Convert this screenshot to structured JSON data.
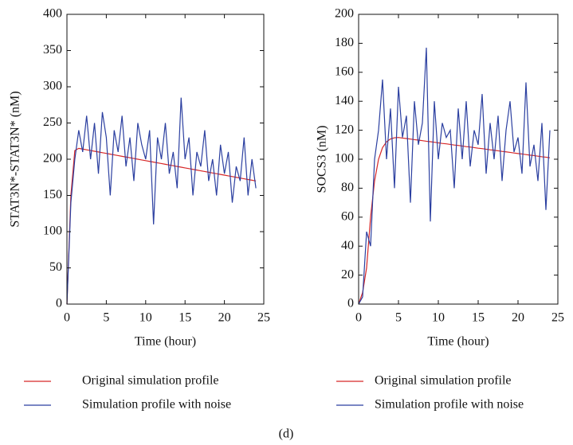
{
  "chart_data": [
    {
      "type": "line",
      "ylabel": "STAT3N*-STAT3N* (nM)",
      "xlabel": "Time (hour)",
      "xlim": [
        0,
        25
      ],
      "xticks": [
        0,
        5,
        10,
        15,
        20,
        25
      ],
      "ylim": [
        0,
        400
      ],
      "yticks": [
        0,
        50,
        100,
        150,
        200,
        250,
        300,
        350,
        400
      ],
      "x": [
        0,
        0.5,
        1,
        1.5,
        2,
        2.5,
        3,
        3.5,
        4,
        4.5,
        5,
        5.5,
        6,
        6.5,
        7,
        7.5,
        8,
        8.5,
        9,
        9.5,
        10,
        10.5,
        11,
        11.5,
        12,
        12.5,
        13,
        13.5,
        14,
        14.5,
        15,
        15.5,
        16,
        16.5,
        17,
        17.5,
        18,
        18.5,
        19,
        19.5,
        20,
        20.5,
        21,
        21.5,
        22,
        22.5,
        23,
        23.5,
        24
      ],
      "series": [
        {
          "name": "Original simulation profile",
          "color": "#d62728",
          "values": [
            0,
            150,
            212,
            215,
            214,
            213,
            212,
            211,
            210,
            209,
            208,
            207,
            206,
            205,
            204,
            203,
            202,
            201,
            200,
            199,
            198,
            197,
            196,
            195,
            194,
            193,
            192,
            191,
            190,
            189,
            188,
            187,
            186,
            185,
            184,
            183,
            182,
            181,
            180,
            179,
            178,
            177,
            176,
            175,
            174,
            173,
            172,
            171,
            170
          ]
        },
        {
          "name": "Simulation profile with noise",
          "color": "#2b3fa0",
          "values": [
            0,
            140,
            200,
            240,
            210,
            260,
            200,
            250,
            180,
            265,
            230,
            150,
            240,
            210,
            260,
            190,
            230,
            170,
            250,
            220,
            200,
            240,
            110,
            230,
            200,
            250,
            180,
            210,
            160,
            285,
            200,
            230,
            150,
            210,
            190,
            240,
            170,
            200,
            150,
            220,
            180,
            210,
            140,
            190,
            170,
            230,
            150,
            200,
            160
          ]
        }
      ]
    },
    {
      "type": "line",
      "ylabel": "SOCS3 (nM)",
      "xlabel": "Time (hour)",
      "xlim": [
        0,
        25
      ],
      "xticks": [
        0,
        5,
        10,
        15,
        20,
        25
      ],
      "ylim": [
        0,
        200
      ],
      "yticks": [
        0,
        20,
        40,
        60,
        80,
        100,
        120,
        140,
        160,
        180,
        200
      ],
      "x": [
        0,
        0.5,
        1,
        1.5,
        2,
        2.5,
        3,
        3.5,
        4,
        4.5,
        5,
        5.5,
        6,
        6.5,
        7,
        7.5,
        8,
        8.5,
        9,
        9.5,
        10,
        10.5,
        11,
        11.5,
        12,
        12.5,
        13,
        13.5,
        14,
        14.5,
        15,
        15.5,
        16,
        16.5,
        17,
        17.5,
        18,
        18.5,
        19,
        19.5,
        20,
        20.5,
        21,
        21.5,
        22,
        22.5,
        23,
        23.5,
        24
      ],
      "series": [
        {
          "name": "Original simulation profile",
          "color": "#d62728",
          "values": [
            0,
            8,
            25,
            60,
            85,
            100,
            108,
            112,
            114,
            114.8,
            115,
            114.6,
            114.3,
            113.9,
            113.5,
            113.2,
            112.8,
            112.4,
            112.1,
            111.7,
            111.3,
            110.9,
            110.6,
            110.2,
            109.8,
            109.5,
            109.1,
            108.7,
            108.4,
            108,
            107.6,
            107.3,
            106.9,
            106.5,
            106.2,
            105.8,
            105.4,
            105.1,
            104.7,
            104.3,
            103.9,
            103.6,
            103.2,
            102.8,
            102.5,
            102.1,
            101.7,
            101.4,
            101
          ]
        },
        {
          "name": "Simulation profile with noise",
          "color": "#2b3fa0",
          "values": [
            0,
            5,
            50,
            40,
            100,
            120,
            155,
            100,
            135,
            80,
            150,
            115,
            130,
            70,
            140,
            110,
            125,
            177,
            57,
            140,
            100,
            125,
            115,
            120,
            80,
            135,
            100,
            140,
            95,
            120,
            110,
            145,
            90,
            125,
            100,
            130,
            85,
            120,
            140,
            105,
            115,
            90,
            153,
            95,
            110,
            85,
            125,
            65,
            120
          ]
        }
      ]
    }
  ],
  "caption": "(d)"
}
